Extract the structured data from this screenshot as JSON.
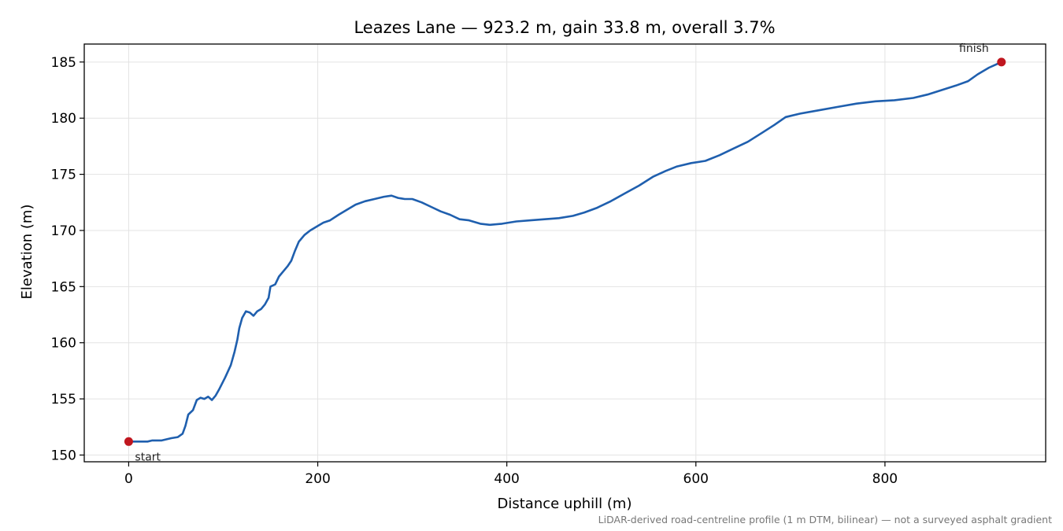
{
  "chart_data": {
    "type": "line",
    "title": "Leazes Lane — 923.2 m, gain 33.8 m, overall 3.7%",
    "xlabel": "Distance uphill (m)",
    "ylabel": "Elevation (m)",
    "xlim": [
      -47,
      970
    ],
    "ylim": [
      149.4,
      186.6
    ],
    "x_ticks": [
      0,
      200,
      400,
      600,
      800
    ],
    "y_ticks": [
      150,
      155,
      160,
      165,
      170,
      175,
      180,
      185
    ],
    "grid": true,
    "series": [
      {
        "color": "#1f5fae",
        "points": [
          [
            0,
            151.2
          ],
          [
            10,
            151.2
          ],
          [
            20,
            151.2
          ],
          [
            25,
            151.3
          ],
          [
            35,
            151.3
          ],
          [
            45,
            151.5
          ],
          [
            52,
            151.6
          ],
          [
            57,
            151.9
          ],
          [
            60,
            152.6
          ],
          [
            63,
            153.6
          ],
          [
            68,
            154.0
          ],
          [
            72,
            154.9
          ],
          [
            76,
            155.1
          ],
          [
            80,
            155.0
          ],
          [
            84,
            155.2
          ],
          [
            88,
            154.9
          ],
          [
            92,
            155.3
          ],
          [
            96,
            155.9
          ],
          [
            102,
            156.9
          ],
          [
            108,
            158.0
          ],
          [
            112,
            159.2
          ],
          [
            115,
            160.3
          ],
          [
            117,
            161.3
          ],
          [
            120,
            162.2
          ],
          [
            124,
            162.8
          ],
          [
            128,
            162.7
          ],
          [
            132,
            162.4
          ],
          [
            136,
            162.8
          ],
          [
            140,
            163.0
          ],
          [
            144,
            163.4
          ],
          [
            148,
            164.0
          ],
          [
            150,
            165.0
          ],
          [
            155,
            165.2
          ],
          [
            159,
            165.9
          ],
          [
            164,
            166.4
          ],
          [
            168,
            166.8
          ],
          [
            172,
            167.3
          ],
          [
            176,
            168.2
          ],
          [
            180,
            169.0
          ],
          [
            186,
            169.6
          ],
          [
            192,
            170.0
          ],
          [
            200,
            170.4
          ],
          [
            206,
            170.7
          ],
          [
            213,
            170.9
          ],
          [
            222,
            171.4
          ],
          [
            230,
            171.8
          ],
          [
            240,
            172.3
          ],
          [
            250,
            172.6
          ],
          [
            260,
            172.8
          ],
          [
            270,
            173.0
          ],
          [
            278,
            173.1
          ],
          [
            285,
            172.9
          ],
          [
            292,
            172.8
          ],
          [
            300,
            172.8
          ],
          [
            310,
            172.5
          ],
          [
            320,
            172.1
          ],
          [
            330,
            171.7
          ],
          [
            340,
            171.4
          ],
          [
            350,
            171.0
          ],
          [
            360,
            170.9
          ],
          [
            372,
            170.6
          ],
          [
            382,
            170.5
          ],
          [
            395,
            170.6
          ],
          [
            410,
            170.8
          ],
          [
            425,
            170.9
          ],
          [
            440,
            171.0
          ],
          [
            455,
            171.1
          ],
          [
            470,
            171.3
          ],
          [
            482,
            171.6
          ],
          [
            495,
            172.0
          ],
          [
            510,
            172.6
          ],
          [
            525,
            173.3
          ],
          [
            540,
            174.0
          ],
          [
            555,
            174.8
          ],
          [
            568,
            175.3
          ],
          [
            580,
            175.7
          ],
          [
            595,
            176.0
          ],
          [
            610,
            176.2
          ],
          [
            625,
            176.7
          ],
          [
            640,
            177.3
          ],
          [
            655,
            177.9
          ],
          [
            670,
            178.7
          ],
          [
            683,
            179.4
          ],
          [
            695,
            180.1
          ],
          [
            710,
            180.4
          ],
          [
            730,
            180.7
          ],
          [
            750,
            181.0
          ],
          [
            770,
            181.3
          ],
          [
            790,
            181.5
          ],
          [
            810,
            181.6
          ],
          [
            830,
            181.8
          ],
          [
            845,
            182.1
          ],
          [
            860,
            182.5
          ],
          [
            875,
            182.9
          ],
          [
            888,
            183.3
          ],
          [
            898,
            183.9
          ],
          [
            910,
            184.5
          ],
          [
            918,
            184.8
          ],
          [
            923.2,
            185.0
          ]
        ]
      }
    ],
    "markers": [
      {
        "x": 0,
        "y": 151.2,
        "label": "start",
        "color": "#c0161f"
      },
      {
        "x": 923.2,
        "y": 185.0,
        "label": "finish",
        "color": "#c0161f"
      }
    ],
    "footnote": "LiDAR-derived road-centreline profile (1 m DTM, bilinear) — not a surveyed asphalt gradient"
  }
}
